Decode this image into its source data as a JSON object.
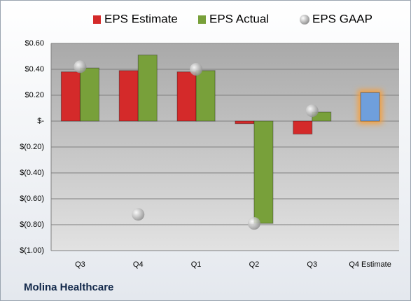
{
  "chart_data": {
    "type": "bar",
    "company": "Molina Healthcare",
    "categories": [
      "Q3",
      "Q4",
      "Q1",
      "Q2",
      "Q3",
      "Q4 Estimate"
    ],
    "series": [
      {
        "name": "EPS Estimate",
        "color": "#d42a2a",
        "highlight_color": "#6f9fdc",
        "values": [
          0.38,
          0.39,
          0.38,
          -0.02,
          -0.1,
          0.22
        ]
      },
      {
        "name": "EPS Actual",
        "color": "#78a03a",
        "values": [
          0.41,
          0.51,
          0.39,
          -0.79,
          0.07,
          null
        ]
      },
      {
        "name": "EPS GAAP",
        "color": "#a8a8a8",
        "type": "scatter",
        "values": [
          0.42,
          -0.72,
          0.4,
          -0.79,
          0.08,
          null
        ]
      }
    ],
    "ylim": [
      -1.0,
      0.6
    ],
    "yticks": [
      {
        "value": -1.0,
        "label": "$(1.00)"
      },
      {
        "value": -0.8,
        "label": "$(0.80)"
      },
      {
        "value": -0.6,
        "label": "$(0.60)"
      },
      {
        "value": -0.4,
        "label": "$(0.40)"
      },
      {
        "value": -0.2,
        "label": "$(0.20)"
      },
      {
        "value": 0,
        "label": "$-"
      },
      {
        "value": 0.2,
        "label": "$0.20"
      },
      {
        "value": 0.4,
        "label": "$0.40"
      },
      {
        "value": 0.6,
        "label": "$0.60"
      }
    ],
    "grid": true
  }
}
